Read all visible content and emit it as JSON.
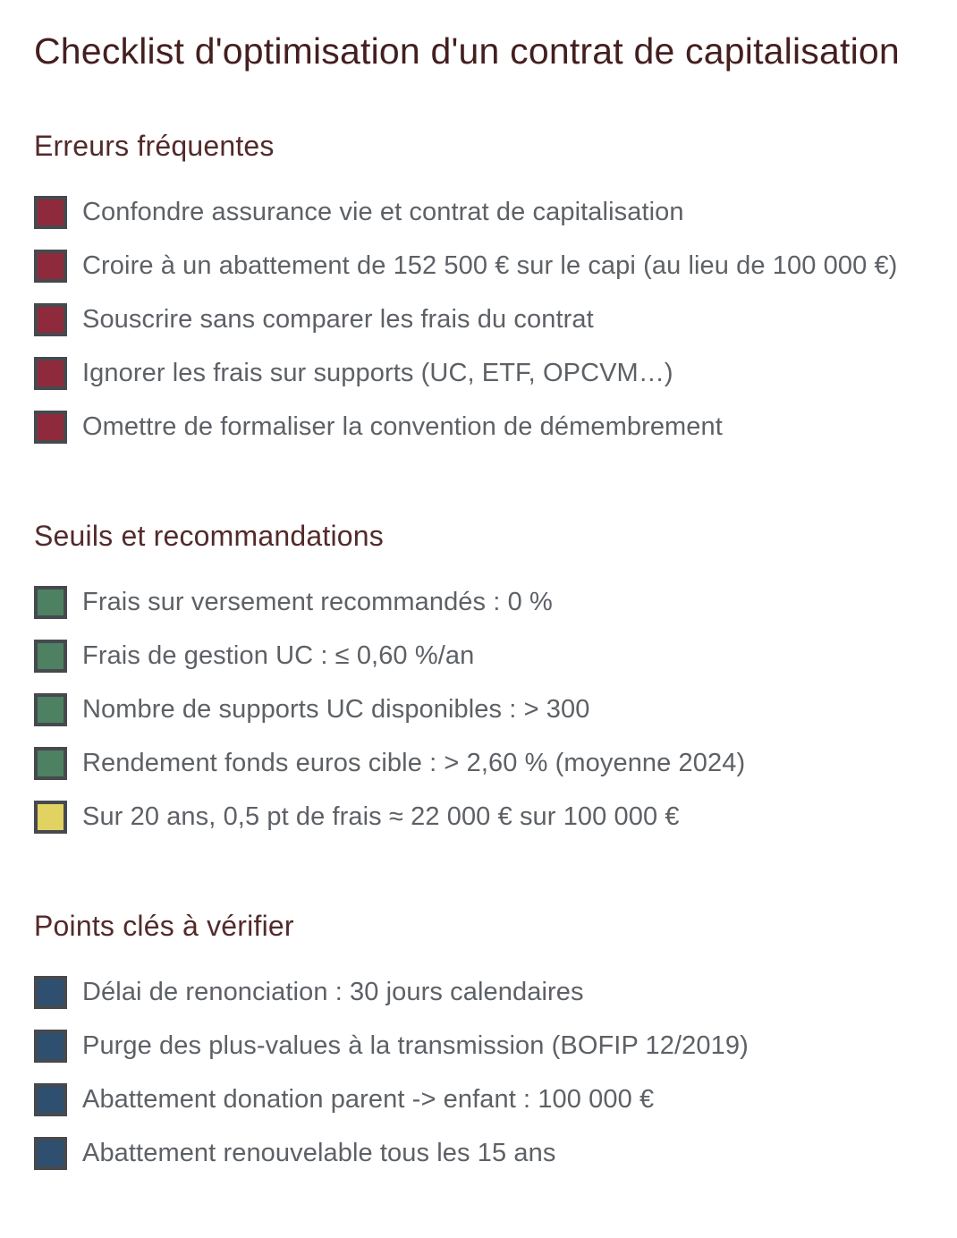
{
  "page": {
    "title": "Checklist d'optimisation d'un contrat de capitalisation"
  },
  "colors": {
    "title_text": "#441f20",
    "heading_text": "#532a2b",
    "item_text": "#5d6166",
    "checkbox_border": "#464a4f",
    "error_red": "#8e2a3b",
    "ok_green": "#4e8062",
    "warn_yellow": "#e1d262",
    "info_blue": "#2e4f6f"
  },
  "sections": [
    {
      "heading": "Erreurs fréquentes",
      "items": [
        {
          "label": "Confondre assurance vie et contrat de capitalisation",
          "checkbox_color": "#8e2a3b"
        },
        {
          "label": "Croire à un abattement de 152 500 € sur le capi (au lieu de 100 000 €)",
          "checkbox_color": "#8e2a3b"
        },
        {
          "label": "Souscrire sans comparer les frais du contrat",
          "checkbox_color": "#8e2a3b"
        },
        {
          "label": "Ignorer les frais sur supports (UC, ETF, OPCVM…)",
          "checkbox_color": "#8e2a3b"
        },
        {
          "label": "Omettre de formaliser la convention de démembrement",
          "checkbox_color": "#8e2a3b"
        }
      ]
    },
    {
      "heading": "Seuils et recommandations",
      "items": [
        {
          "label": "Frais sur versement recommandés : 0 %",
          "checkbox_color": "#4e8062"
        },
        {
          "label": "Frais de gestion UC : ≤ 0,60 %/an",
          "checkbox_color": "#4e8062"
        },
        {
          "label": "Nombre de supports UC disponibles : > 300",
          "checkbox_color": "#4e8062"
        },
        {
          "label": "Rendement fonds euros cible : > 2,60 % (moyenne 2024)",
          "checkbox_color": "#4e8062"
        },
        {
          "label": "Sur 20 ans, 0,5 pt de frais ≈ 22 000 € sur 100 000 €",
          "checkbox_color": "#e1d262"
        }
      ]
    },
    {
      "heading": "Points clés à vérifier",
      "items": [
        {
          "label": "Délai de renonciation : 30 jours calendaires",
          "checkbox_color": "#2e4f6f"
        },
        {
          "label": "Purge des plus-values à la transmission (BOFIP 12/2019)",
          "checkbox_color": "#2e4f6f"
        },
        {
          "label": "Abattement donation parent -> enfant : 100 000 €",
          "checkbox_color": "#2e4f6f"
        },
        {
          "label": "Abattement renouvelable tous les 15 ans",
          "checkbox_color": "#2e4f6f"
        }
      ]
    }
  ]
}
